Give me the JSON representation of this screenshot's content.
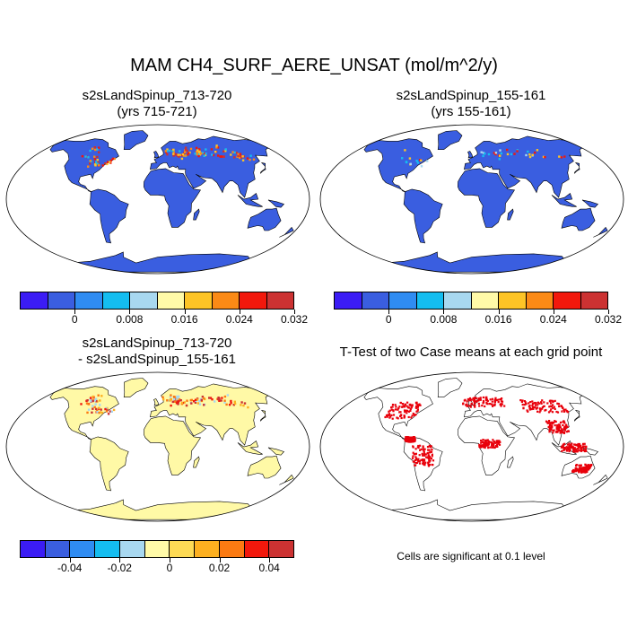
{
  "title": "MAM CH4_SURF_AERE_UNSAT (mol/m^2/y)",
  "panels": [
    {
      "id": "p1",
      "title_line1": "s2sLandSpinup_713-720",
      "title_line2": "(yrs 715-721)",
      "fill": "#3a5ee0"
    },
    {
      "id": "p2",
      "title_line1": "s2sLandSpinup_155-161",
      "title_line2": "(yrs 155-161)",
      "fill": "#3a5ee0"
    },
    {
      "id": "p3",
      "title_line1": "s2sLandSpinup_713-720",
      "title_line2": "- s2sLandSpinup_155-161",
      "fill": "#fff9a6"
    },
    {
      "id": "p4",
      "title_line1": "T-Test of two Case means at each grid point",
      "fill": "#ffffff"
    }
  ],
  "colorbars": {
    "abs": {
      "colors": [
        "#3b1cf5",
        "#3a5ee0",
        "#2f8cf2",
        "#14bdf0",
        "#a8d8f0",
        "#fffaa8",
        "#fdc426",
        "#fb8a16",
        "#f2180c",
        "#cc3232"
      ],
      "ticks": [
        "0",
        "0.008",
        "0.016",
        "0.024",
        "0.032"
      ]
    },
    "diff": {
      "colors": [
        "#3b1cf5",
        "#3a5ee0",
        "#2f8cf2",
        "#14bdf0",
        "#a8d8f0",
        "#fffaa8",
        "#fdda55",
        "#fdb020",
        "#fb7a12",
        "#f2180c",
        "#cc3232"
      ],
      "ticks": [
        "-0.04",
        "-0.02",
        "0",
        "0.02",
        "0.04"
      ]
    }
  },
  "significance_note": "Cells are significant at 0.1 level"
}
